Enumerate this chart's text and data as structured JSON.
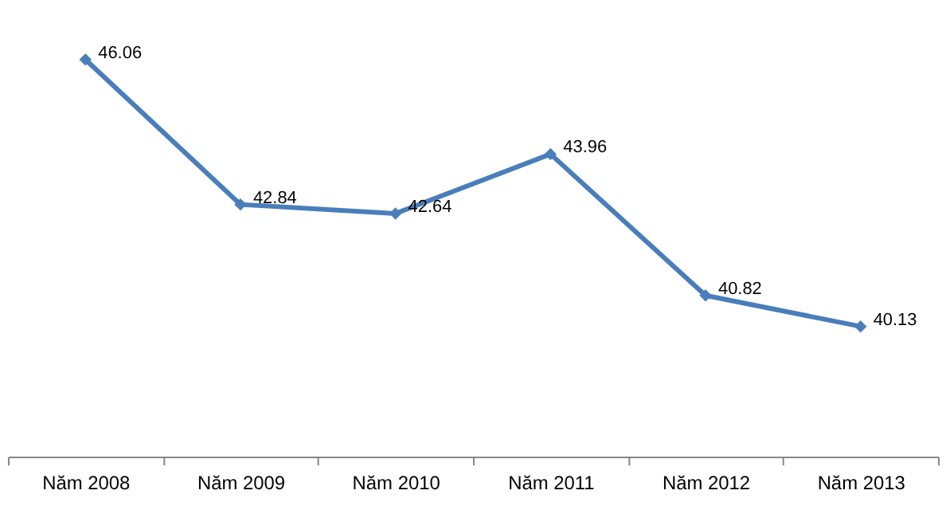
{
  "chart_data": {
    "type": "line",
    "categories": [
      "Năm 2008",
      "Năm 2009",
      "Năm 2010",
      "Năm 2011",
      "Năm 2012",
      "Năm 2013"
    ],
    "series": [
      {
        "color": "#4a7ebb",
        "values": [
          46.06,
          42.84,
          42.64,
          43.96,
          40.82,
          40.13
        ]
      }
    ],
    "tick_labels": "x",
    "data_labels": true,
    "marker": "diamond",
    "line_style": "solid",
    "grid": false
  }
}
